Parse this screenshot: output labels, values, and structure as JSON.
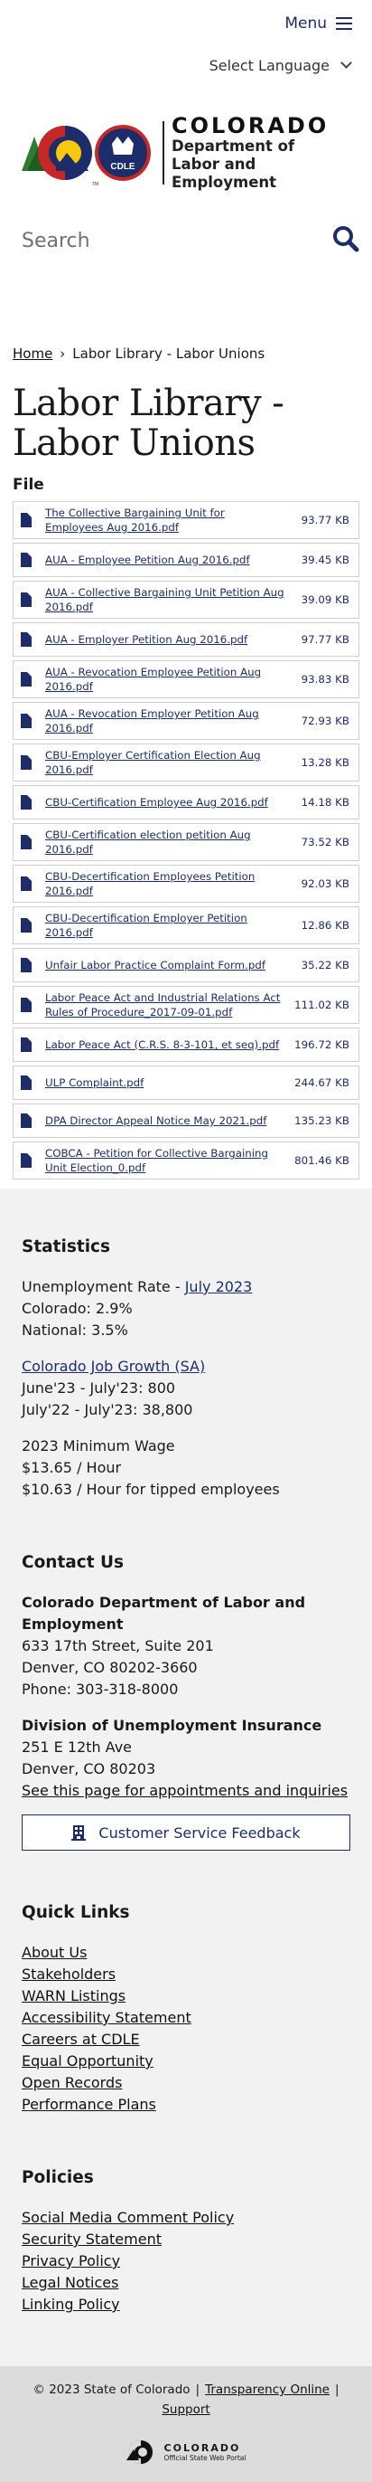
{
  "header": {
    "menu_label": "Menu",
    "language_label": "Select Language"
  },
  "logo": {
    "word": "COLORADO",
    "dept_line1": "Department of",
    "dept_line2": "Labor and Employment",
    "cdle": "CDLE",
    "tm": "TM"
  },
  "search": {
    "placeholder": "Search"
  },
  "breadcrumb": {
    "home": "Home",
    "separator": "›",
    "current": "Labor Library - Labor Unions"
  },
  "page_title": "Labor Library - Labor Unions",
  "file_heading": "File",
  "files": [
    {
      "name": "The Collective Bargaining Unit for Employees Aug 2016.pdf",
      "size": "93.77 KB"
    },
    {
      "name": "AUA - Employee Petition Aug 2016.pdf",
      "size": "39.45 KB"
    },
    {
      "name": "AUA - Collective Bargaining Unit Petition Aug 2016.pdf",
      "size": "39.09 KB"
    },
    {
      "name": "AUA - Employer Petition Aug 2016.pdf",
      "size": "97.77 KB"
    },
    {
      "name": "AUA - Revocation Employee Petition Aug 2016.pdf",
      "size": "93.83 KB"
    },
    {
      "name": "AUA - Revocation Employer Petition Aug 2016.pdf",
      "size": "72.93 KB"
    },
    {
      "name": "CBU-Employer Certification Election Aug 2016.pdf",
      "size": "13.28 KB"
    },
    {
      "name": "CBU-Certification Employee Aug 2016.pdf",
      "size": "14.18 KB"
    },
    {
      "name": "CBU-Certification election petition Aug 2016.pdf",
      "size": "73.52 KB"
    },
    {
      "name": "CBU-Decertification Employees Petition 2016.pdf",
      "size": "92.03 KB"
    },
    {
      "name": "CBU-Decertification Employer Petition 2016.pdf",
      "size": "12.86 KB"
    },
    {
      "name": "Unfair Labor Practice Complaint Form.pdf",
      "size": "35.22 KB"
    },
    {
      "name": "Labor Peace Act and Industrial Relations Act Rules of Procedure_2017-09-01.pdf",
      "size": "111.02 KB"
    },
    {
      "name": "Labor Peace Act (C.R.S. 8-3-101, et seq).pdf",
      "size": "196.72 KB"
    },
    {
      "name": "ULP Complaint.pdf",
      "size": "244.67 KB"
    },
    {
      "name": "DPA Director Appeal Notice May 2021.pdf",
      "size": "135.23 KB"
    },
    {
      "name": "COBCA - Petition for Collective Bargaining Unit Election_0.pdf",
      "size": "801.46 KB"
    }
  ],
  "statistics": {
    "title": "Statistics",
    "unemployment_prefix": "Unemployment Rate - ",
    "unemployment_link": "July 2023",
    "colorado": "Colorado: 2.9%",
    "national": "National: 3.5%",
    "job_growth_link": "Colorado Job Growth (SA)",
    "june_july": "June'23 - July'23: 800",
    "july_july": "July'22 - July'23: 38,800",
    "min_wage_title": "2023 Minimum Wage",
    "min_wage_hour": "$13.65 / Hour",
    "min_wage_tipped": "$10.63 / Hour for tipped employees"
  },
  "contact": {
    "title": "Contact Us",
    "org1_name": "Colorado Department of Labor and Employment",
    "org1_address1": "633 17th Street, Suite 201",
    "org1_address2": "Denver, CO  80202-3660",
    "org1_phone": "Phone: 303-318-8000",
    "org2_name": "Division of Unemployment Insurance",
    "org2_address1": "251 E 12th Ave",
    "org2_address2": "Denver, CO  80203",
    "org2_link": "See this page for appointments and inquiries",
    "feedback_label": "Customer Service Feedback"
  },
  "quick_links": {
    "title": "Quick Links",
    "items": [
      "About Us",
      "Stakeholders",
      "WARN Listings",
      "Accessibility Statement",
      "Careers at CDLE",
      "Equal Opportunity",
      "Open Records",
      "Performance Plans"
    ]
  },
  "policies": {
    "title": "Policies",
    "items": [
      "Social Media Comment Policy",
      "Security Statement",
      "Privacy Policy",
      "Legal Notices",
      "Linking Policy"
    ]
  },
  "copyright": {
    "text": "© 2023 State of Colorado",
    "sep": "|",
    "transparency": "Transparency Online",
    "support": "Support",
    "state_logo_word": "COLORADO",
    "state_logo_sub": "Official State Web Portal"
  },
  "colors": {
    "brand_navy": "#1d2d6b",
    "footer_bg": "#f2f2f2",
    "copyright_bg": "#dcdcdc"
  }
}
